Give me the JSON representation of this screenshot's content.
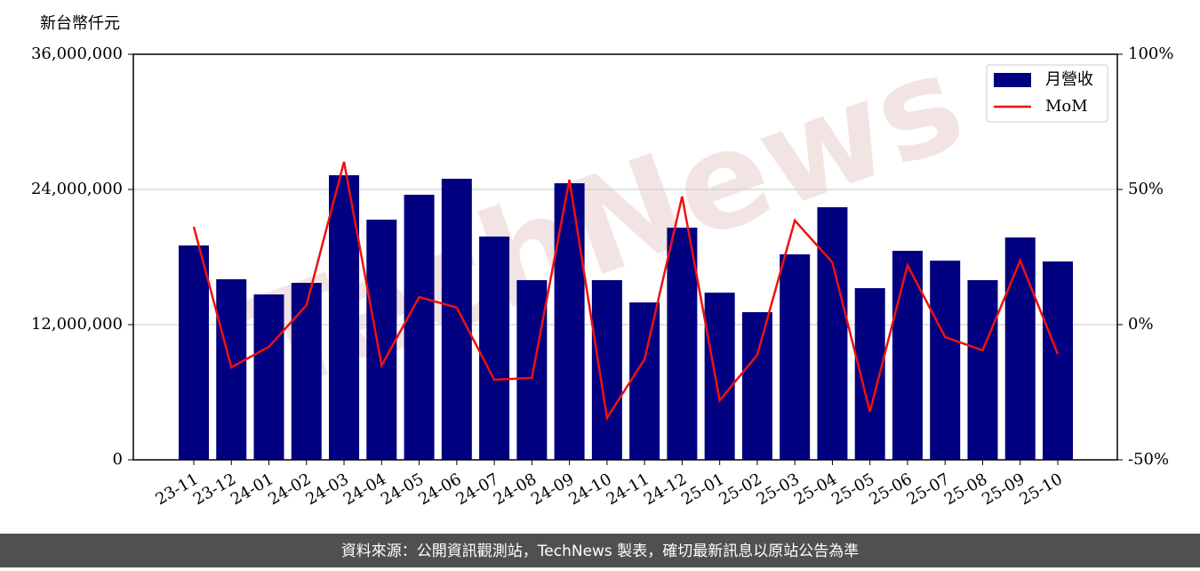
{
  "chart_data": {
    "type": "bar-line",
    "y_label": "新台幣仟元",
    "watermark": "TechNews",
    "footer": "資料來源：公開資訊觀測站，TechNews 製表，確切最新訊息以原站公告為準",
    "categories": [
      "23-11",
      "23-12",
      "24-01",
      "24-02",
      "24-03",
      "24-04",
      "24-05",
      "24-06",
      "24-07",
      "24-08",
      "24-09",
      "24-10",
      "24-11",
      "24-12",
      "25-01",
      "25-02",
      "25-03",
      "25-04",
      "25-05",
      "25-06",
      "25-07",
      "25-08",
      "25-09",
      "25-10"
    ],
    "series": [
      {
        "name": "月營收",
        "color": "#000080",
        "type": "bar",
        "values": [
          19030000,
          16030000,
          14680000,
          15710000,
          25260000,
          21320000,
          23530000,
          24950000,
          19820000,
          15950000,
          24550000,
          15950000,
          13970000,
          20610000,
          14840000,
          13110000,
          18240000,
          22420000,
          15240000,
          18550000,
          17680000,
          15950000,
          19740000,
          17610000
        ]
      },
      {
        "name": "MoM",
        "color": "#ee1111",
        "type": "line",
        "axis": "y2",
        "values": [
          36.2,
          -15.8,
          -8.2,
          7.2,
          60.2,
          -15.1,
          10.2,
          6.3,
          -20.4,
          -19.7,
          53.6,
          -34.5,
          -12.8,
          47.4,
          -28.0,
          -11.2,
          38.5,
          23.0,
          -32.2,
          22.0,
          -4.6,
          -9.5,
          23.7,
          -10.9
        ]
      }
    ],
    "ylim": [
      0,
      36000000
    ],
    "yticks": [
      0,
      {
        "value": 12000000,
        "label": "12,000,000"
      },
      {
        "value": 24000000,
        "label": "24,000,000"
      },
      {
        "value": 36000000,
        "label": "36,000,000"
      }
    ],
    "y2lim": [
      -50,
      100
    ],
    "y2ticks": [
      {
        "value": -50,
        "label": "-50%"
      },
      {
        "value": 0,
        "label": "0%"
      },
      {
        "value": 50,
        "label": "50%"
      },
      {
        "value": 100,
        "label": "100%"
      }
    ],
    "grid": true,
    "legend": "upper right"
  }
}
